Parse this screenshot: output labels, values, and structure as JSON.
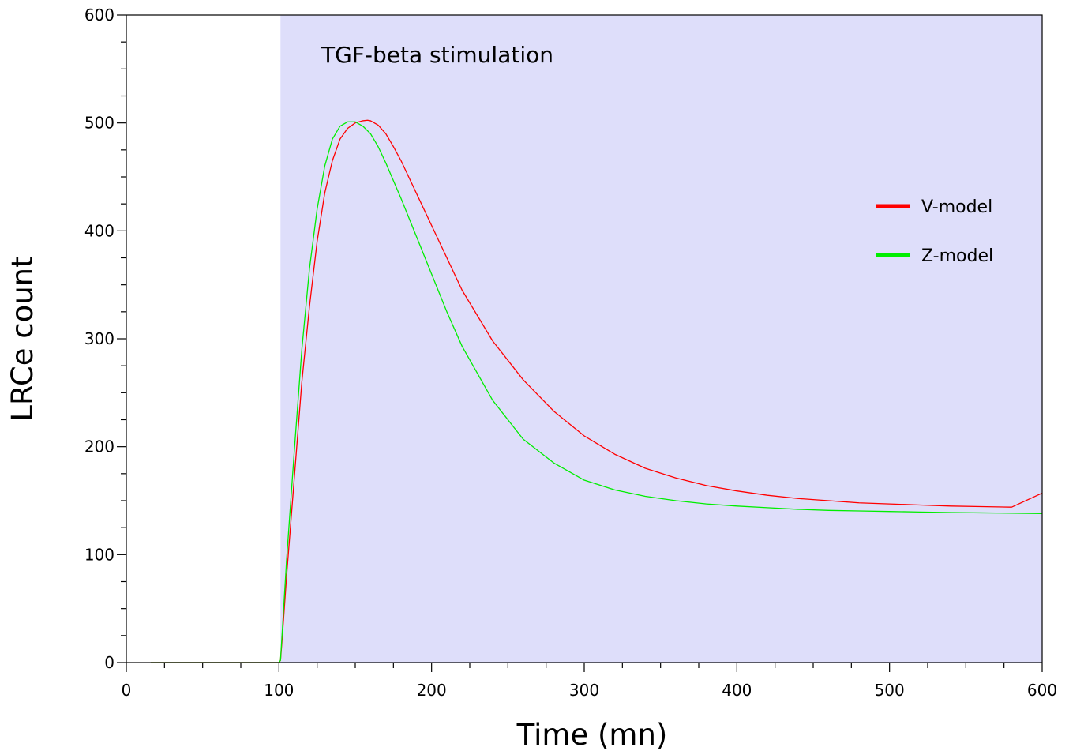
{
  "chart_data": {
    "type": "line",
    "xlabel": "Time (mn)",
    "ylabel": "LRCe count",
    "xlim": [
      0,
      600
    ],
    "ylim": [
      0,
      600
    ],
    "x_ticks": [
      0,
      100,
      200,
      300,
      400,
      500,
      600
    ],
    "y_ticks": [
      0,
      100,
      200,
      300,
      400,
      500,
      600
    ],
    "grid": false,
    "legend_position": "right",
    "shaded_region": {
      "x_start": 101,
      "x_end": 600,
      "label": "TGF-beta stimulation",
      "color": "#dedefa"
    },
    "series": [
      {
        "name": "V-model",
        "color": "#ff0000",
        "x": [
          16,
          50,
          100,
          101,
          102,
          105,
          110,
          115,
          120,
          125,
          130,
          135,
          140,
          145,
          150,
          155,
          158,
          160,
          165,
          170,
          175,
          180,
          190,
          200,
          210,
          220,
          240,
          260,
          280,
          300,
          320,
          340,
          360,
          380,
          400,
          420,
          440,
          460,
          480,
          500,
          520,
          540,
          560,
          580,
          600
        ],
        "y": [
          0,
          0,
          0,
          2,
          20,
          80,
          170,
          260,
          330,
          390,
          435,
          465,
          485,
          495,
          500,
          502,
          502.5,
          502,
          498,
          490,
          478,
          465,
          435,
          405,
          375,
          345,
          298,
          262,
          233,
          210,
          193,
          180,
          171,
          164,
          159,
          155,
          152,
          150,
          148,
          147,
          146,
          145,
          144.5,
          144,
          157
        ]
      },
      {
        "name": "Z-model",
        "color": "#00ee00",
        "x": [
          16,
          50,
          100,
          101,
          102,
          105,
          110,
          115,
          120,
          125,
          130,
          135,
          140,
          145,
          150,
          155,
          160,
          165,
          170,
          180,
          190,
          200,
          210,
          220,
          240,
          260,
          280,
          300,
          320,
          340,
          360,
          380,
          400,
          420,
          440,
          460,
          480,
          500,
          520,
          540,
          560,
          580,
          600
        ],
        "y": [
          0,
          0,
          0,
          2,
          25,
          95,
          195,
          290,
          365,
          420,
          460,
          485,
          497,
          501,
          501,
          497,
          490,
          478,
          463,
          430,
          395,
          360,
          325,
          293,
          243,
          207,
          185,
          169,
          160,
          154,
          150,
          147,
          145,
          143.5,
          142,
          141,
          140.5,
          140,
          139.5,
          139,
          138.7,
          138.4,
          138
        ]
      }
    ]
  }
}
